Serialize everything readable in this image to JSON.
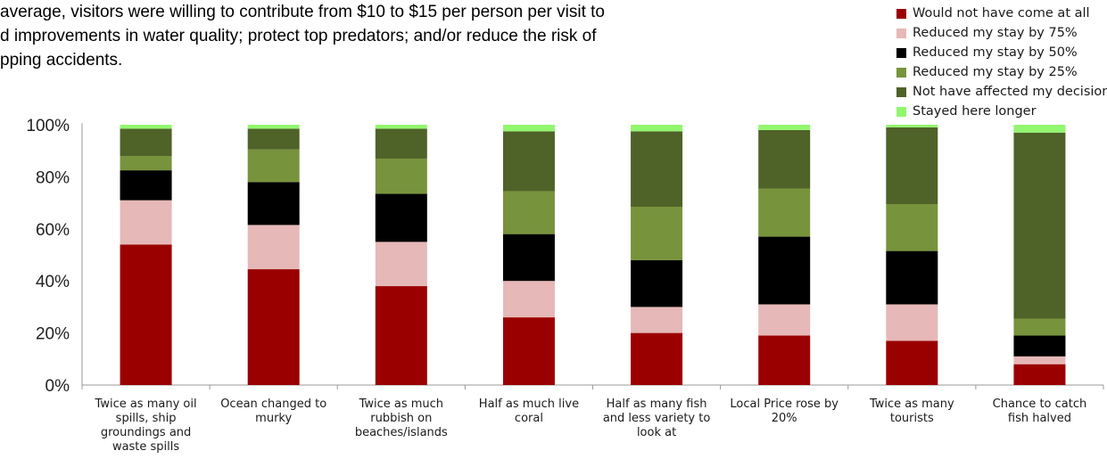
{
  "text": {
    "lines": [
      "average, visitors were willing to contribute from $10 to $15 per person per visit to",
      "d improvements in water quality; protect top predators; and/or reduce the risk of",
      "pping accidents."
    ]
  },
  "chart_data": {
    "type": "bar",
    "stacked": true,
    "title": "",
    "xlabel": "",
    "ylabel": "",
    "ylim": [
      0,
      100
    ],
    "yticks": [
      "0%",
      "20%",
      "40%",
      "60%",
      "80%",
      "100%"
    ],
    "grid": false,
    "legend_position": "top-right",
    "categories": [
      [
        "Twice as many oil",
        "spills, ship",
        "groundings and",
        "waste spills"
      ],
      [
        "Ocean changed to",
        "murky"
      ],
      [
        "Twice as much",
        "rubbish on",
        "beaches/islands"
      ],
      [
        "Half as much live",
        "coral"
      ],
      [
        "Half as many fish",
        "and less variety to",
        "look at"
      ],
      [
        "Local Price rose by",
        "20%"
      ],
      [
        "Twice as many",
        "tourists"
      ],
      [
        "Chance to catch",
        "fish halved"
      ]
    ],
    "series": [
      {
        "name": "Would not have come at all",
        "color": "#9b0000",
        "values": [
          54,
          44.5,
          38,
          26,
          20,
          19,
          17,
          8
        ]
      },
      {
        "name": "Reduced my stay by 75%",
        "color": "#e6b8b7",
        "values": [
          17,
          17,
          17,
          14,
          10,
          12,
          14,
          3
        ]
      },
      {
        "name": "Reduced my stay by 50%",
        "color": "#000000",
        "values": [
          11.5,
          16.5,
          18.5,
          18,
          18,
          26,
          20.5,
          8
        ]
      },
      {
        "name": "Reduced my stay by 25%",
        "color": "#77933c",
        "values": [
          5.5,
          12.5,
          13.5,
          16.5,
          20.5,
          18.5,
          18,
          6.5
        ]
      },
      {
        "name": "Not have affected my decision",
        "color": "#4f6228",
        "values": [
          10.5,
          8,
          11.5,
          23,
          29,
          22.5,
          29.5,
          71.5
        ]
      },
      {
        "name": "Stayed here longer",
        "color": "#92f76e",
        "values": [
          1.5,
          1.5,
          1.5,
          2.5,
          2.5,
          2,
          1,
          3
        ]
      }
    ]
  }
}
